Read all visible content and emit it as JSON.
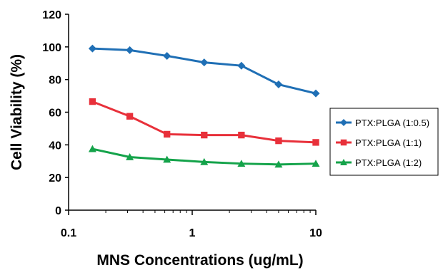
{
  "chart_data": {
    "type": "line",
    "title": "",
    "xlabel": "MNS Concentrations (ug/mL)",
    "ylabel": "Cell Viability (%)",
    "xscale": "log",
    "xlim": [
      0.1,
      10
    ],
    "ylim": [
      0,
      120
    ],
    "x_ticks": [
      {
        "value": 0.1,
        "label": "0.1"
      },
      {
        "value": 1,
        "label": "1"
      },
      {
        "value": 10,
        "label": "10"
      }
    ],
    "y_ticks": [
      0,
      20,
      40,
      60,
      80,
      100,
      120
    ],
    "grid": false,
    "legend_position": "right",
    "x": [
      0.156,
      0.3125,
      0.625,
      1.25,
      2.5,
      5,
      10
    ],
    "series": [
      {
        "name": "PTX:PLGA (1:0.5)",
        "color": "#1f6fb5",
        "marker": "diamond",
        "values": [
          99,
          98,
          94.5,
          90.5,
          88.5,
          77,
          71.5
        ]
      },
      {
        "name": "PTX:PLGA (1:1)",
        "color": "#e8303a",
        "marker": "square",
        "values": [
          66.5,
          57.5,
          46.5,
          46,
          46,
          42.5,
          41.5
        ]
      },
      {
        "name": "PTX:PLGA (1:2)",
        "color": "#14a34a",
        "marker": "triangle",
        "values": [
          37.5,
          32.5,
          31,
          29.5,
          28.5,
          28,
          28.5
        ]
      }
    ]
  }
}
